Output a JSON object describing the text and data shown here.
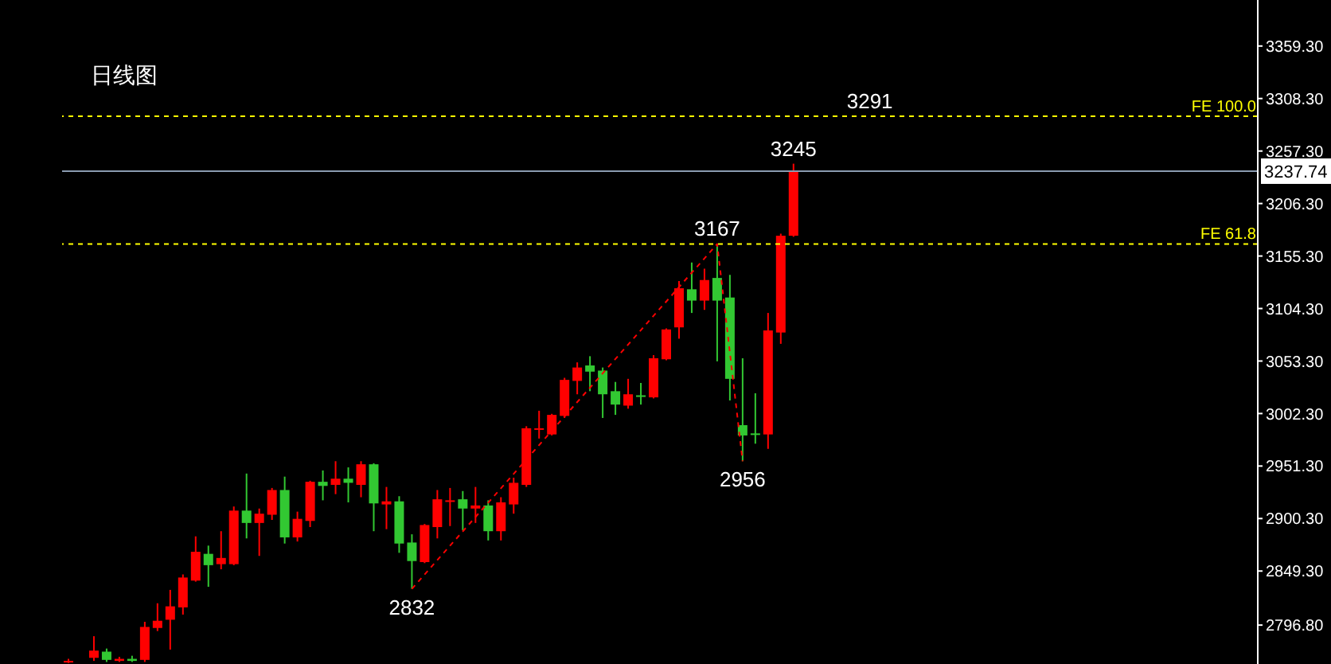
{
  "chart_data": {
    "type": "candlestick",
    "title": "日线图",
    "categories": [
      null,
      null,
      null,
      null,
      null,
      null,
      null,
      null,
      null,
      null,
      null,
      null,
      null,
      null,
      null,
      null,
      null,
      null,
      null,
      null,
      null,
      null,
      null,
      null,
      null,
      null,
      null,
      null,
      null,
      null,
      null,
      null,
      null,
      null,
      null,
      null,
      null,
      null,
      null,
      null,
      null,
      null,
      null,
      null,
      null,
      null,
      null,
      null,
      null,
      null,
      null,
      null,
      null,
      null,
      null,
      null,
      null,
      null,
      null,
      null,
      null,
      null,
      null,
      null,
      null,
      null,
      null,
      null,
      null,
      null,
      null,
      null,
      null,
      null,
      null,
      null,
      null,
      null,
      null,
      null,
      null,
      null,
      null,
      null,
      null,
      null,
      null,
      null,
      null,
      null,
      null,
      null,
      null,
      null
    ],
    "ohlc": [
      [
        2761,
        2764,
        2760,
        2762
      ],
      null,
      [
        2765,
        2786,
        2762,
        2772
      ],
      [
        2771,
        2774,
        2761,
        2763
      ],
      [
        2762,
        2766,
        2761,
        2764
      ],
      [
        2764,
        2767,
        2761,
        2762
      ],
      [
        2763,
        2800,
        2761,
        2795
      ],
      [
        2794,
        2818,
        2791,
        2801
      ],
      [
        2802,
        2831,
        2773,
        2815
      ],
      [
        2814,
        2846,
        2807,
        2843
      ],
      [
        2840,
        2883,
        2839,
        2868
      ],
      [
        2866,
        2874,
        2834,
        2855
      ],
      [
        2856,
        2888,
        2851,
        2862
      ],
      [
        2856,
        2912,
        2855,
        2908
      ],
      [
        2908,
        2944,
        2881,
        2896
      ],
      [
        2896,
        2910,
        2864,
        2905
      ],
      [
        2904,
        2930,
        2899,
        2928
      ],
      [
        2928,
        2941,
        2876,
        2882
      ],
      [
        2882,
        2907,
        2878,
        2900
      ],
      [
        2898,
        2937,
        2892,
        2936
      ],
      [
        2936,
        2947,
        2918,
        2932
      ],
      [
        2933,
        2956,
        2924,
        2939
      ],
      [
        2939,
        2950,
        2916,
        2935
      ],
      [
        2933,
        2956,
        2921,
        2953
      ],
      [
        2953,
        2954,
        2888,
        2915
      ],
      [
        2914,
        2931,
        2890,
        2917
      ],
      [
        2917,
        2922,
        2867,
        2876
      ],
      [
        2877,
        2885,
        2832,
        2859
      ],
      [
        2858,
        2895,
        2857,
        2894
      ],
      [
        2892,
        2928,
        2881,
        2919
      ],
      [
        2917,
        2930,
        2893,
        2918
      ],
      [
        2919,
        2927,
        2889,
        2910
      ],
      [
        2910,
        2931,
        2896,
        2913
      ],
      [
        2913,
        2918,
        2879,
        2888
      ],
      [
        2888,
        2921,
        2879,
        2916
      ],
      [
        2914,
        2940,
        2905,
        2935
      ],
      [
        2933,
        2990,
        2931,
        2988
      ],
      [
        2987,
        3005,
        2978,
        2988
      ],
      [
        2982,
        3002,
        2981,
        3001
      ],
      [
        3000,
        3037,
        2998,
        3035
      ],
      [
        3034,
        3052,
        3021,
        3047
      ],
      [
        3049,
        3058,
        3024,
        3043
      ],
      [
        3044,
        3047,
        2998,
        3021
      ],
      [
        3024,
        3033,
        3001,
        3011
      ],
      [
        3010,
        3036,
        3007,
        3021
      ],
      [
        3020,
        3032,
        3011,
        3019
      ],
      [
        3018,
        3059,
        3017,
        3056
      ],
      [
        3055,
        3085,
        3054,
        3084
      ],
      [
        3086,
        3131,
        3075,
        3124
      ],
      [
        3123,
        3149,
        3100,
        3112
      ],
      [
        3112,
        3143,
        3103,
        3132
      ],
      [
        3134,
        3167,
        3053,
        3112
      ],
      [
        3115,
        3137,
        3015,
        3036
      ],
      [
        2991,
        3056,
        2956,
        2981
      ],
      [
        2983,
        3022,
        2973,
        2982
      ],
      [
        2982,
        3100,
        2968,
        3083
      ],
      [
        3081,
        3177,
        3070,
        3175
      ],
      [
        3175,
        3245,
        3174,
        3237
      ],
      null,
      null,
      null,
      null,
      null,
      null,
      null,
      null,
      null,
      null,
      null,
      null,
      null,
      null,
      null,
      null,
      null,
      null,
      null,
      null,
      null,
      null,
      null,
      null,
      null,
      null,
      null,
      null,
      null,
      null,
      null,
      null,
      null,
      null,
      null,
      null
    ],
    "colors": [
      "#ff0000",
      null,
      "#ff0000",
      "#32c832",
      "#ff0000",
      "#32c832",
      "#ff0000",
      "#ff0000",
      "#ff0000",
      "#ff0000",
      "#ff0000",
      "#32c832",
      "#ff0000",
      "#ff0000",
      "#32c832",
      "#ff0000",
      "#ff0000",
      "#32c832",
      "#ff0000",
      "#ff0000",
      "#32c832",
      "#ff0000",
      "#32c832",
      "#ff0000",
      "#32c832",
      "#ff0000",
      "#32c832",
      "#32c832",
      "#ff0000",
      "#ff0000",
      "#ff0000",
      "#32c832",
      "#ff0000",
      "#32c832",
      "#ff0000",
      "#ff0000",
      "#ff0000",
      "#ff0000",
      "#ff0000",
      "#ff0000",
      "#ff0000",
      "#32c832",
      "#32c832",
      "#32c832",
      "#ff0000",
      "#32c832",
      "#ff0000",
      "#ff0000",
      "#ff0000",
      "#32c832",
      "#ff0000",
      "#32c832",
      "#32c832",
      "#32c832",
      "#32c832",
      "#ff0000",
      "#ff0000",
      "#ff0000",
      null,
      null,
      null,
      null,
      null,
      null,
      null,
      null,
      null,
      null,
      null,
      null,
      null,
      null,
      null,
      null,
      null,
      null,
      null,
      null,
      null,
      null,
      null,
      null,
      null,
      null,
      null,
      null,
      null,
      null,
      null,
      null,
      null,
      null,
      null,
      null
    ],
    "series": [
      {
        "type": "line",
        "color": "#ff0000",
        "line_style": "dashed",
        "values": [
          null,
          null,
          null,
          null,
          null,
          null,
          null,
          null,
          null,
          null,
          null,
          null,
          null,
          null,
          null,
          null,
          null,
          null,
          null,
          null,
          null,
          null,
          null,
          null,
          null,
          null,
          null,
          2832,
          null,
          null,
          null,
          null,
          null,
          null,
          null,
          null,
          null,
          null,
          null,
          null,
          null,
          null,
          null,
          null,
          null,
          null,
          null,
          null,
          null,
          null,
          null,
          3167,
          null,
          2956,
          null,
          null,
          null,
          null,
          null,
          null,
          null,
          null,
          null,
          null,
          null,
          null,
          null,
          null,
          null,
          null,
          null,
          null,
          null,
          null,
          null,
          null,
          null,
          null,
          null,
          null,
          null,
          null,
          null,
          null,
          null,
          null,
          null,
          null,
          null,
          null,
          null,
          null,
          null,
          null
        ]
      }
    ],
    "ylim": [
      2759,
      3404
    ],
    "yticks": [
      {
        "value": 2796.8,
        "label": "2796.80"
      },
      {
        "value": 2849.3,
        "label": "2849.30"
      },
      {
        "value": 2900.3,
        "label": "2900.30"
      },
      {
        "value": 2951.3,
        "label": "2951.30"
      },
      {
        "value": 3002.3,
        "label": "3002.30"
      },
      {
        "value": 3053.3,
        "label": "3053.30"
      },
      {
        "value": 3104.3,
        "label": "3104.30"
      },
      {
        "value": 3155.3,
        "label": "3155.30"
      },
      {
        "value": 3206.3,
        "label": "3206.30"
      },
      {
        "value": 3257.3,
        "label": "3257.30"
      },
      {
        "value": 3308.3,
        "label": "3308.30"
      },
      {
        "value": 3359.3,
        "label": "3359.30"
      }
    ],
    "tick_labels": "y",
    "marker": "none",
    "ref_lines": [
      {
        "axis": "y",
        "value": 3291,
        "label": "FE 100.0",
        "color": "#ffff00",
        "line_style": "dashed"
      },
      {
        "axis": "y",
        "value": 3167,
        "label": "FE 61.8",
        "color": "#ffff00",
        "line_style": "dashed"
      },
      {
        "axis": "y",
        "value": 3237.74,
        "label": "3237.74",
        "color": "#8a9bb0",
        "line_style": "solid"
      }
    ],
    "annotations": [
      {
        "text": "3291",
        "y": 3291
      },
      {
        "text": "3245",
        "y": 3245
      },
      {
        "text": "3167",
        "y": 3167
      },
      {
        "text": "2956",
        "y": 2956
      },
      {
        "text": "2832",
        "y": 2832
      }
    ]
  }
}
